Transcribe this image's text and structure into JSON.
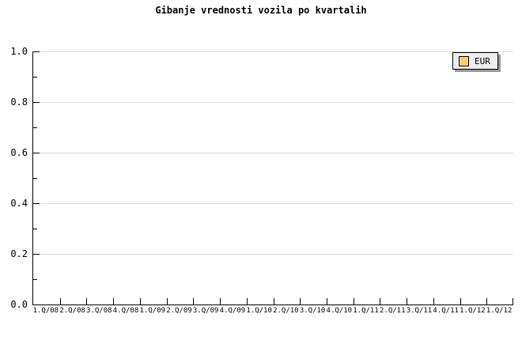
{
  "title": "Gibanje vrednosti vozila po kvartalih",
  "legend": {
    "label": "EUR",
    "swatch_color": "#F9CD75",
    "position": "top-right"
  },
  "colors": {
    "background": "#FFFFFF",
    "grid": "#DCDCDC",
    "axis": "#000000",
    "text": "#000000",
    "legend_bg": "#EDEDED",
    "legend_shadow": "#999999"
  },
  "chart_data": {
    "type": "line",
    "title": "Gibanje vrednosti vozila po kvartalih",
    "categories": [
      "1.Q/08",
      "2.Q/08",
      "3.Q/08",
      "4.Q/08",
      "1.Q/09",
      "2.Q/09",
      "3.Q/09",
      "4.Q/09",
      "1.Q/10",
      "2.Q/10",
      "3.Q/10",
      "4.Q/10",
      "1.Q/11",
      "2.Q/11",
      "3.Q/11",
      "4.Q/11",
      "1.Q/12",
      "1.Q/12"
    ],
    "series": [
      {
        "name": "EUR",
        "color": "#F9CD75",
        "values": []
      }
    ],
    "xlabel": "",
    "ylabel": "",
    "ylim": [
      0.0,
      1.0
    ],
    "y_ticks": [
      "0.0",
      "0.2",
      "0.4",
      "0.6",
      "0.8",
      "1.0"
    ],
    "y_minor_tick_interval": 0.1,
    "grid": "horizontal-major",
    "legend_position": "top-right",
    "plot_empty": true
  }
}
